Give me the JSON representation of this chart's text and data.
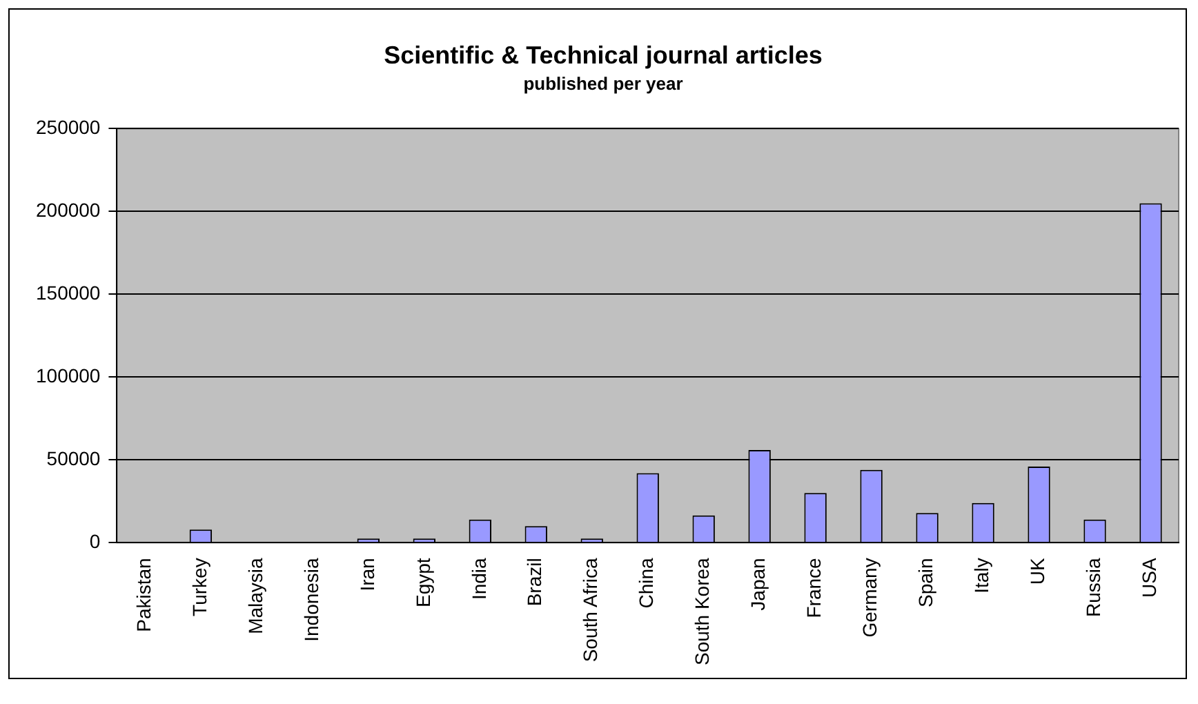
{
  "chart_data": {
    "type": "bar",
    "title": "Scientific & Technical journal articles",
    "subtitle": "published per year",
    "categories": [
      "Pakistan",
      "Turkey",
      "Malaysia",
      "Indonesia",
      "Iran",
      "Egypt",
      "India",
      "Brazil",
      "South Africa",
      "China",
      "South Korea",
      "Japan",
      "France",
      "Germany",
      "Spain",
      "Italy",
      "UK",
      "Russia",
      "USA"
    ],
    "values": [
      0,
      8000,
      0,
      0,
      2500,
      2500,
      14000,
      10000,
      2500,
      42000,
      16500,
      56000,
      30000,
      44000,
      18000,
      24000,
      46000,
      14000,
      205000
    ],
    "color": "#9999ff",
    "ylim": [
      0,
      250000
    ],
    "yticks": [
      0,
      50000,
      100000,
      150000,
      200000,
      250000
    ],
    "grid": "y",
    "legend": false
  }
}
